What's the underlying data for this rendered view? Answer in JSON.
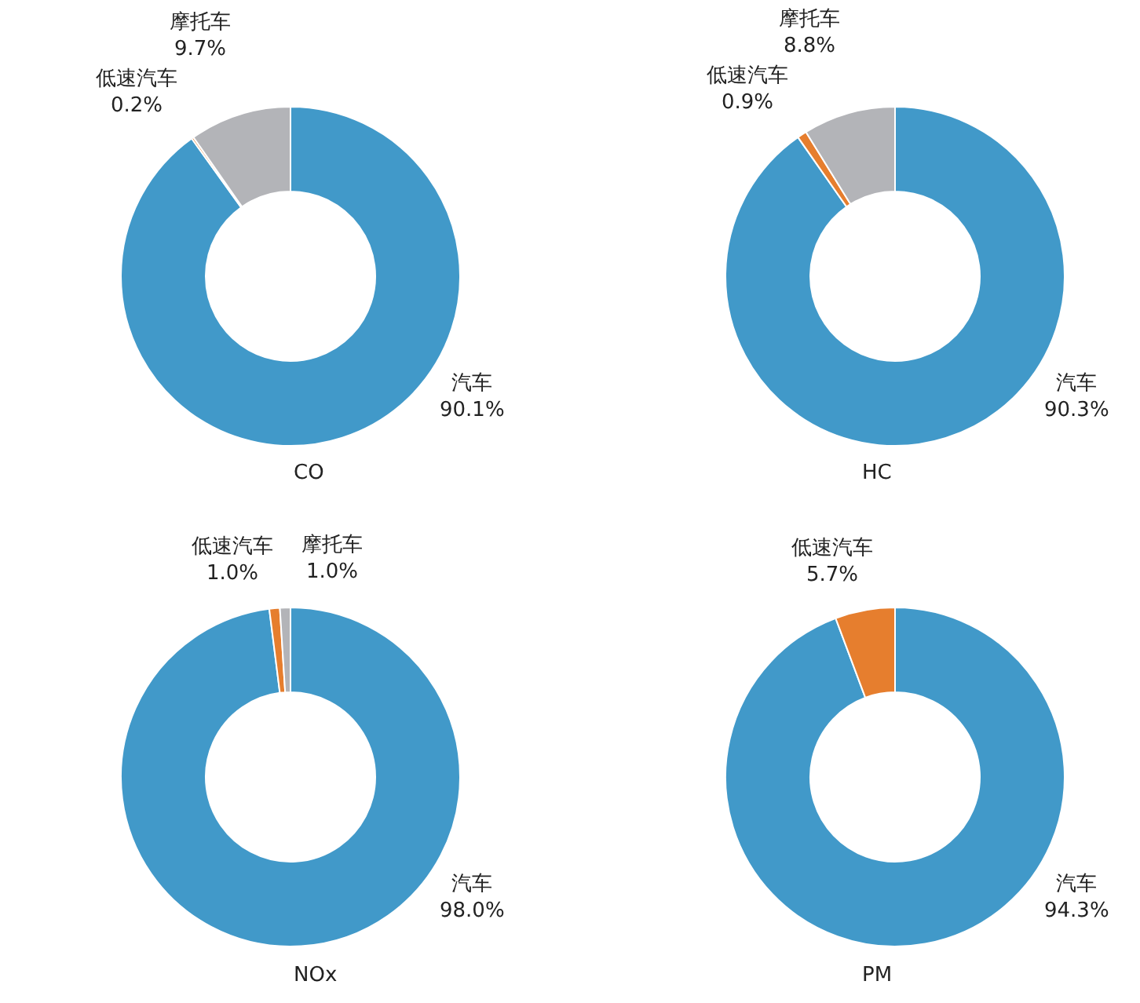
{
  "chart_data": [
    {
      "type": "donut",
      "title": "CO",
      "categories": [
        "汽车",
        "低速汽车",
        "摩托车"
      ],
      "values": [
        90.1,
        0.2,
        9.7
      ],
      "value_labels": [
        "90.1%",
        "0.2%",
        "9.7%"
      ],
      "colors": [
        "#4199c9",
        "#e67e2e",
        "#b3b4b8"
      ]
    },
    {
      "type": "donut",
      "title": "HC",
      "categories": [
        "汽车",
        "低速汽车",
        "摩托车"
      ],
      "values": [
        90.3,
        0.9,
        8.8
      ],
      "value_labels": [
        "90.3%",
        "0.9%",
        "8.8%"
      ],
      "colors": [
        "#4199c9",
        "#e67e2e",
        "#b3b4b8"
      ]
    },
    {
      "type": "donut",
      "title": "NOx",
      "categories": [
        "汽车",
        "低速汽车",
        "摩托车"
      ],
      "values": [
        98.0,
        1.0,
        1.0
      ],
      "value_labels": [
        "98.0%",
        "1.0%",
        "1.0%"
      ],
      "colors": [
        "#4199c9",
        "#e67e2e",
        "#b3b4b8"
      ]
    },
    {
      "type": "donut",
      "title": "PM",
      "categories": [
        "汽车",
        "低速汽车"
      ],
      "values": [
        94.3,
        5.7
      ],
      "value_labels": [
        "94.3%",
        "5.7%"
      ],
      "colors": [
        "#4199c9",
        "#e67e2e"
      ]
    }
  ]
}
